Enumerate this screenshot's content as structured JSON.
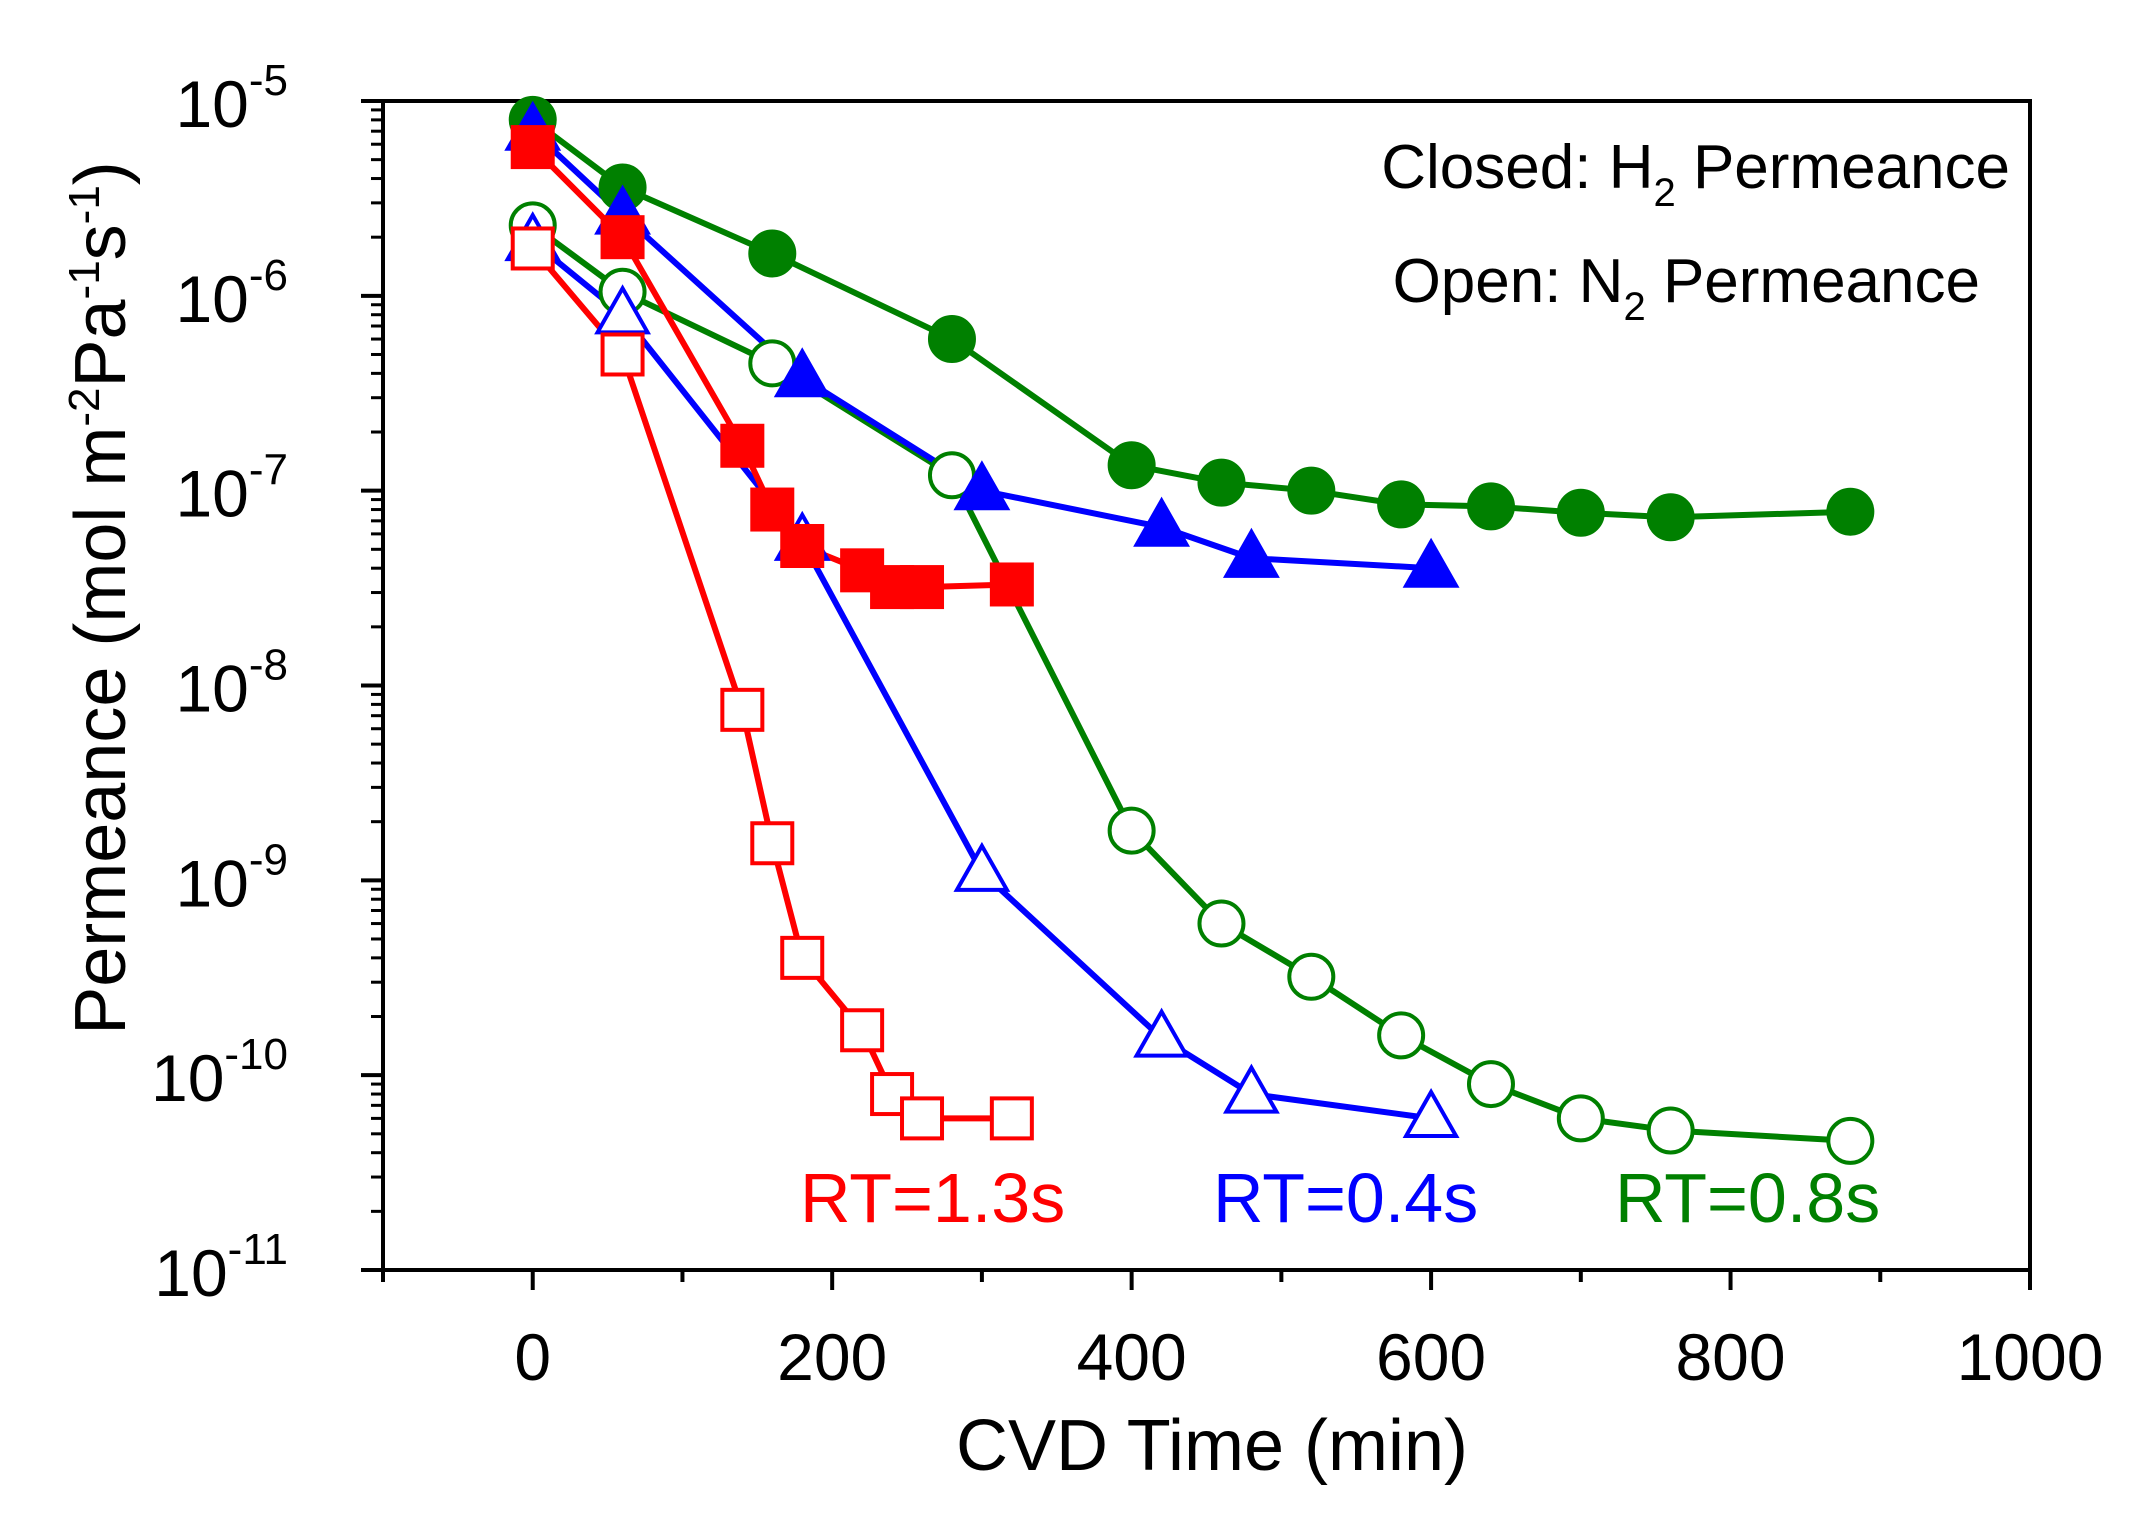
{
  "chart_data": {
    "type": "line",
    "yscale": "log",
    "xlabel": "CVD Time (min)",
    "ylabel": {
      "prefix": "Permeance (mol m",
      "exp1": "-2",
      "mid": "Pa",
      "exp2": "-1",
      "mid2": "s",
      "exp3": "-1",
      "suffix": ")"
    },
    "xlim": [
      -100,
      1000
    ],
    "ylim_exp": [
      -11,
      -5
    ],
    "xticks": [
      0,
      200,
      400,
      600,
      800,
      1000
    ],
    "xtick_labels": [
      "0",
      "200",
      "400",
      "600",
      "800",
      "1000"
    ],
    "yticks": [
      {
        "base": "10",
        "exp": "-11"
      },
      {
        "base": "10",
        "exp": "-10"
      },
      {
        "base": "10",
        "exp": "-9"
      },
      {
        "base": "10",
        "exp": "-8"
      },
      {
        "base": "10",
        "exp": "-7"
      },
      {
        "base": "10",
        "exp": "-6"
      },
      {
        "base": "10",
        "exp": "-5"
      }
    ],
    "annotations": {
      "closed": {
        "prefix": "Closed: H",
        "sub": "2",
        "suffix": " Permeance"
      },
      "open": {
        "prefix": "Open: N",
        "sub": "2",
        "suffix": " Permeance"
      }
    },
    "series": [
      {
        "name": "RT=1.3s H2",
        "label": "RT=1.3s",
        "gas": "H2",
        "color": "#ff0000",
        "marker": "square",
        "filled": true,
        "x": [
          0,
          60,
          140,
          160,
          180,
          220,
          240,
          260,
          320
        ],
        "y": [
          5.8e-06,
          2e-06,
          1.7e-07,
          8e-08,
          5.2e-08,
          3.9e-08,
          3.2e-08,
          3.2e-08,
          3.3e-08
        ]
      },
      {
        "name": "RT=1.3s N2",
        "label": "RT=1.3s",
        "gas": "N2",
        "color": "#ff0000",
        "marker": "square",
        "filled": false,
        "x": [
          0,
          60,
          140,
          160,
          180,
          220,
          240,
          260,
          320
        ],
        "y": [
          1.75e-06,
          5e-07,
          7.5e-09,
          1.55e-09,
          4e-10,
          1.7e-10,
          8e-11,
          6e-11,
          6e-11
        ]
      },
      {
        "name": "RT=0.4s H2",
        "label": "RT=0.4s",
        "gas": "H2",
        "color": "#0000ff",
        "marker": "triangle",
        "filled": true,
        "x": [
          0,
          60,
          180,
          300,
          420,
          480,
          600
        ],
        "y": [
          7e-06,
          2.6e-06,
          3.8e-07,
          1e-07,
          6.5e-08,
          4.5e-08,
          4e-08
        ]
      },
      {
        "name": "RT=0.4s N2",
        "label": "RT=0.4s",
        "gas": "N2",
        "color": "#0000ff",
        "marker": "triangle",
        "filled": false,
        "x": [
          0,
          60,
          180,
          300,
          420,
          480,
          600
        ],
        "y": [
          1.9e-06,
          8e-07,
          5.5e-08,
          1.1e-09,
          1.55e-10,
          8e-11,
          6e-11
        ]
      },
      {
        "name": "RT=0.8s H2",
        "label": "RT=0.8s",
        "gas": "H2",
        "color": "#008000",
        "marker": "circle",
        "filled": true,
        "x": [
          0,
          60,
          160,
          280,
          400,
          460,
          520,
          580,
          640,
          700,
          760,
          880
        ],
        "y": [
          8e-06,
          3.6e-06,
          1.65e-06,
          6e-07,
          1.35e-07,
          1.1e-07,
          1e-07,
          8.5e-08,
          8.3e-08,
          7.7e-08,
          7.3e-08,
          7.8e-08
        ]
      },
      {
        "name": "RT=0.8s N2",
        "label": "RT=0.8s",
        "gas": "N2",
        "color": "#008000",
        "marker": "circle",
        "filled": false,
        "x": [
          0,
          60,
          160,
          280,
          400,
          460,
          520,
          580,
          640,
          700,
          760,
          880
        ],
        "y": [
          2.3e-06,
          1.05e-06,
          4.5e-07,
          1.2e-07,
          1.8e-09,
          6e-10,
          3.2e-10,
          1.6e-10,
          9e-11,
          6e-11,
          5.2e-11,
          4.6e-11
        ]
      }
    ],
    "series_labels": [
      {
        "text": "RT=1.3s",
        "color": "#ff0000"
      },
      {
        "text": "RT=0.4s",
        "color": "#0000ff"
      },
      {
        "text": "RT=0.8s",
        "color": "#008000"
      }
    ]
  }
}
